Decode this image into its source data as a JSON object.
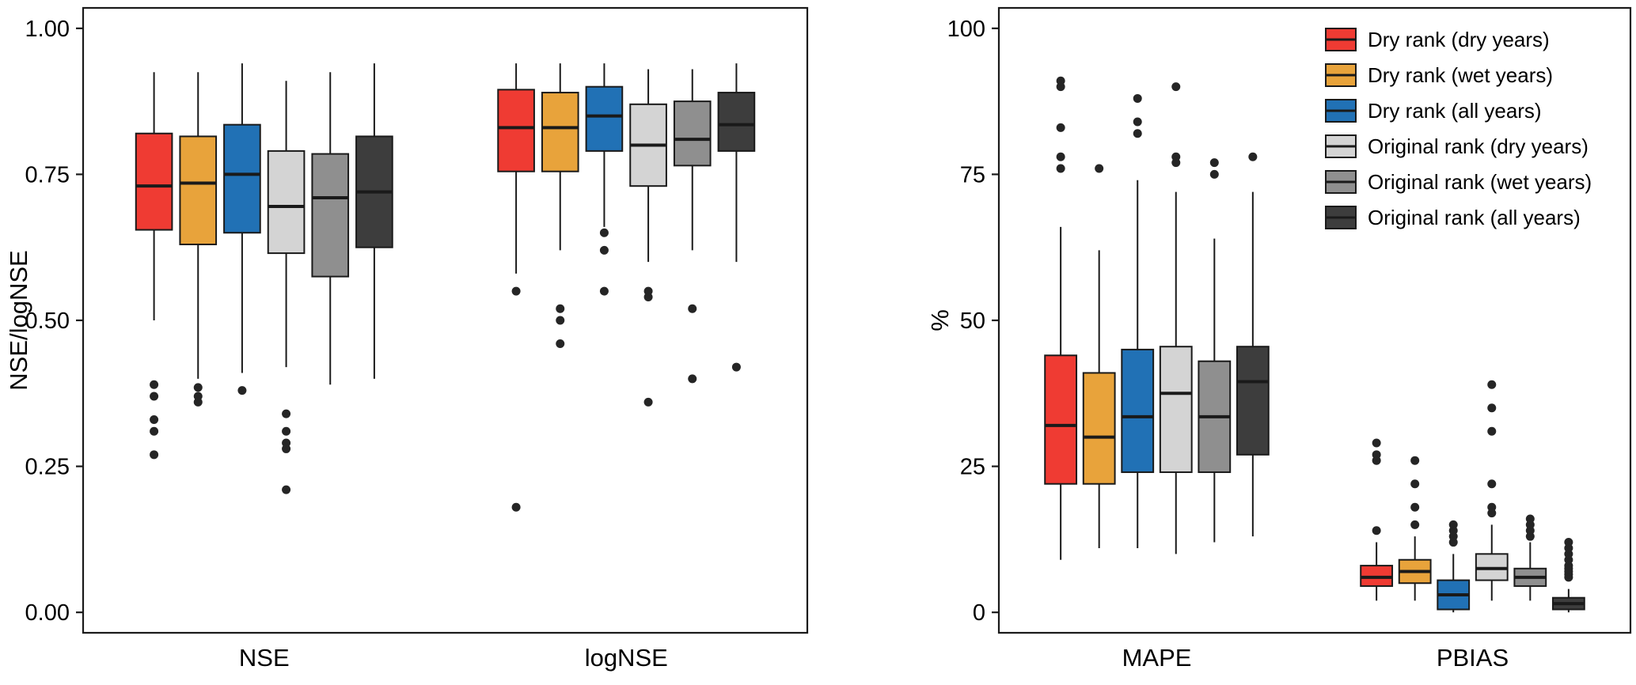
{
  "figure": {
    "background": "#ffffff",
    "box_edge_color": "#1a1a1a",
    "outlier_color": "#252525"
  },
  "chart_data": [
    {
      "type": "boxplot",
      "panel": "left",
      "title": "",
      "xlabel": "",
      "ylabel": "NSE/logNSE",
      "ylim": [
        -0.035,
        1.035
      ],
      "yticks": [
        0,
        0.25,
        0.5,
        0.75,
        1
      ],
      "ytick_labels": [
        "0.00",
        "0.25",
        "0.50",
        "0.75",
        "1.00"
      ],
      "categories": [
        "NSE",
        "logNSE"
      ],
      "grid": false,
      "series": [
        {
          "name": "Dry rank (dry years)",
          "color": "#EF3B33",
          "boxes": [
            {
              "min": 0.5,
              "q1": 0.655,
              "median": 0.73,
              "q3": 0.82,
              "max": 0.925,
              "outliers": [
                0.39,
                0.37,
                0.33,
                0.31,
                0.27
              ]
            },
            {
              "min": 0.58,
              "q1": 0.755,
              "median": 0.83,
              "q3": 0.895,
              "max": 0.94,
              "outliers": [
                0.55,
                0.18
              ]
            }
          ]
        },
        {
          "name": "Dry rank (wet years)",
          "color": "#E8A33B",
          "boxes": [
            {
              "min": 0.4,
              "q1": 0.63,
              "median": 0.735,
              "q3": 0.815,
              "max": 0.925,
              "outliers": [
                0.385,
                0.37,
                0.36
              ]
            },
            {
              "min": 0.62,
              "q1": 0.755,
              "median": 0.83,
              "q3": 0.89,
              "max": 0.94,
              "outliers": [
                0.52,
                0.5,
                0.46
              ]
            }
          ]
        },
        {
          "name": "Dry rank (all years)",
          "color": "#2171B5",
          "boxes": [
            {
              "min": 0.41,
              "q1": 0.65,
              "median": 0.75,
              "q3": 0.835,
              "max": 0.94,
              "outliers": [
                0.38
              ]
            },
            {
              "min": 0.66,
              "q1": 0.79,
              "median": 0.85,
              "q3": 0.9,
              "max": 0.94,
              "outliers": [
                0.65,
                0.62,
                0.55
              ]
            }
          ]
        },
        {
          "name": "Original rank (dry years)",
          "color": "#D4D4D4",
          "boxes": [
            {
              "min": 0.42,
              "q1": 0.615,
              "median": 0.695,
              "q3": 0.79,
              "max": 0.91,
              "outliers": [
                0.34,
                0.31,
                0.29,
                0.28,
                0.21
              ]
            },
            {
              "min": 0.6,
              "q1": 0.73,
              "median": 0.8,
              "q3": 0.87,
              "max": 0.93,
              "outliers": [
                0.55,
                0.54,
                0.36
              ]
            }
          ]
        },
        {
          "name": "Original rank (wet years)",
          "color": "#8F8F8F",
          "boxes": [
            {
              "min": 0.39,
              "q1": 0.575,
              "median": 0.71,
              "q3": 0.785,
              "max": 0.925,
              "outliers": []
            },
            {
              "min": 0.62,
              "q1": 0.765,
              "median": 0.81,
              "q3": 0.875,
              "max": 0.93,
              "outliers": [
                0.52,
                0.4
              ]
            }
          ]
        },
        {
          "name": "Original rank (all years)",
          "color": "#3D3D3D",
          "boxes": [
            {
              "min": 0.4,
              "q1": 0.625,
              "median": 0.72,
              "q3": 0.815,
              "max": 0.94,
              "outliers": []
            },
            {
              "min": 0.6,
              "q1": 0.79,
              "median": 0.835,
              "q3": 0.89,
              "max": 0.94,
              "outliers": [
                0.42
              ]
            }
          ]
        }
      ],
      "legend": {
        "show": false
      }
    },
    {
      "type": "boxplot",
      "panel": "right",
      "title": "",
      "xlabel": "",
      "ylabel": "%",
      "ylim": [
        -3.5,
        103.5
      ],
      "yticks": [
        0,
        25,
        50,
        75,
        100
      ],
      "ytick_labels": [
        "0",
        "25",
        "50",
        "75",
        "100"
      ],
      "categories": [
        "MAPE",
        "PBIAS"
      ],
      "grid": false,
      "series": [
        {
          "name": "Dry rank (dry years)",
          "color": "#EF3B33",
          "boxes": [
            {
              "min": 9,
              "q1": 22,
              "median": 32,
              "q3": 44,
              "max": 66,
              "outliers": [
                76,
                78,
                83,
                90,
                91
              ]
            },
            {
              "min": 2,
              "q1": 4.5,
              "median": 6,
              "q3": 8,
              "max": 12,
              "outliers": [
                14,
                26,
                27,
                29
              ]
            }
          ]
        },
        {
          "name": "Dry rank (wet years)",
          "color": "#E8A33B",
          "boxes": [
            {
              "min": 11,
              "q1": 22,
              "median": 30,
              "q3": 41,
              "max": 62,
              "outliers": [
                76
              ]
            },
            {
              "min": 2,
              "q1": 5,
              "median": 7,
              "q3": 9,
              "max": 13,
              "outliers": [
                15,
                18,
                22,
                26
              ]
            }
          ]
        },
        {
          "name": "Dry rank (all years)",
          "color": "#2171B5",
          "boxes": [
            {
              "min": 11,
              "q1": 24,
              "median": 33.5,
              "q3": 45,
              "max": 74,
              "outliers": [
                82,
                84,
                88
              ]
            },
            {
              "min": 0,
              "q1": 0.5,
              "median": 3,
              "q3": 5.5,
              "max": 10,
              "outliers": [
                12,
                13,
                14,
                15
              ]
            }
          ]
        },
        {
          "name": "Original rank (dry years)",
          "color": "#D4D4D4",
          "boxes": [
            {
              "min": 10,
              "q1": 24,
              "median": 37.5,
              "q3": 45.5,
              "max": 72,
              "outliers": [
                77,
                78,
                90
              ]
            },
            {
              "min": 2,
              "q1": 5.5,
              "median": 7.5,
              "q3": 10,
              "max": 15,
              "outliers": [
                17,
                18,
                22,
                31,
                35,
                39
              ]
            }
          ]
        },
        {
          "name": "Original rank (wet years)",
          "color": "#8F8F8F",
          "boxes": [
            {
              "min": 12,
              "q1": 24,
              "median": 33.5,
              "q3": 43,
              "max": 64,
              "outliers": [
                75,
                77
              ]
            },
            {
              "min": 2,
              "q1": 4.5,
              "median": 6,
              "q3": 7.5,
              "max": 12,
              "outliers": [
                13,
                14,
                15,
                16
              ]
            }
          ]
        },
        {
          "name": "Original rank (all years)",
          "color": "#3D3D3D",
          "boxes": [
            {
              "min": 13,
              "q1": 27,
              "median": 39.5,
              "q3": 45.5,
              "max": 72,
              "outliers": [
                78
              ]
            },
            {
              "min": 0,
              "q1": 0.5,
              "median": 1.5,
              "q3": 2.5,
              "max": 4,
              "outliers": [
                6,
                6.5,
                7,
                7.5,
                8,
                9,
                10,
                11,
                12
              ]
            }
          ]
        }
      ],
      "legend": {
        "show": true,
        "position": "top-right",
        "entries": [
          "Dry rank (dry years)",
          "Dry rank (wet years)",
          "Dry rank (all years)",
          "Original rank (dry years)",
          "Original rank (wet years)",
          "Original rank (all years)"
        ]
      }
    }
  ]
}
